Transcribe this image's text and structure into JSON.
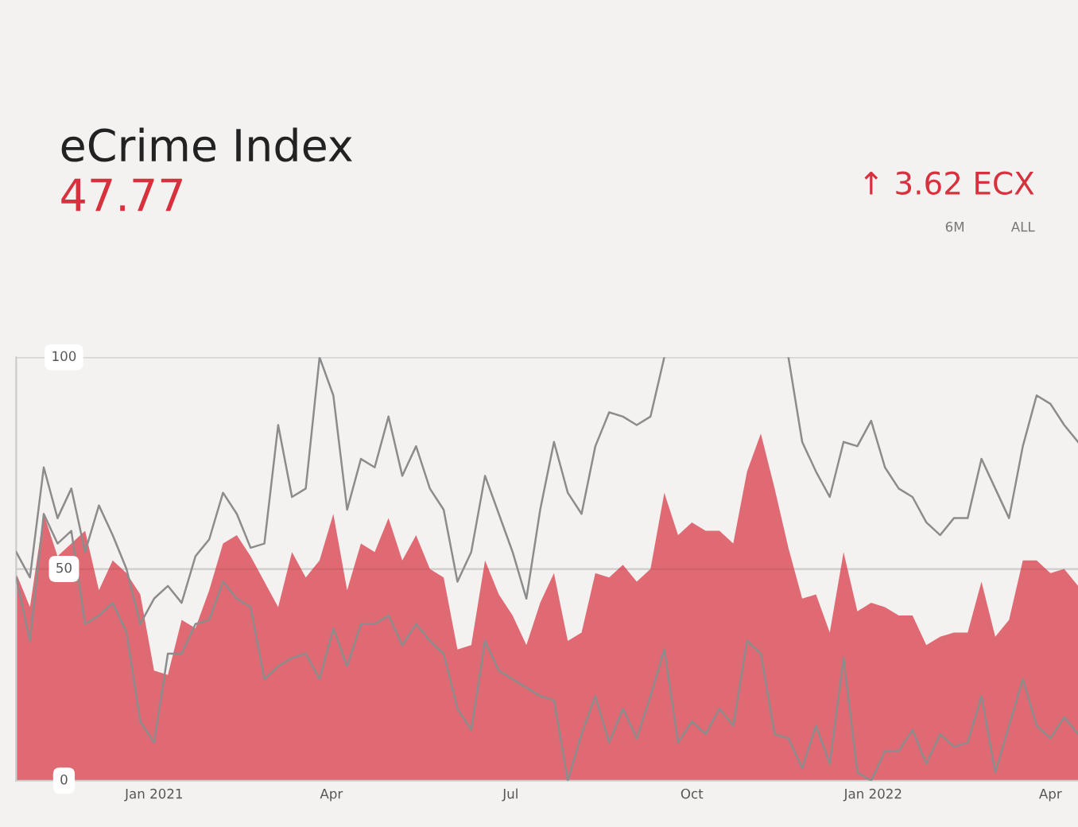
{
  "chart_data": {
    "type": "area",
    "title": "eCrime Index",
    "subtitle": "47.77",
    "annotations": [
      "↑ 3.62 ECX",
      "6M",
      "ALL"
    ],
    "x": [
      "2020-10-23",
      "2020-10-30",
      "2020-11-06",
      "2020-11-13",
      "2020-11-20",
      "2020-11-27",
      "2020-12-04",
      "2020-12-11",
      "2020-12-18",
      "2020-12-25",
      "2021-01-01",
      "2021-01-08",
      "2021-01-15",
      "2021-01-22",
      "2021-01-29",
      "2021-02-05",
      "2021-02-12",
      "2021-02-19",
      "2021-02-26",
      "2021-03-05",
      "2021-03-12",
      "2021-03-19",
      "2021-03-26",
      "2021-04-02",
      "2021-04-09",
      "2021-04-16",
      "2021-04-23",
      "2021-04-30",
      "2021-05-07",
      "2021-05-14",
      "2021-05-21",
      "2021-05-28",
      "2021-06-04",
      "2021-06-11",
      "2021-06-18",
      "2021-06-25",
      "2021-07-02",
      "2021-07-09",
      "2021-07-16",
      "2021-07-23",
      "2021-07-30",
      "2021-08-06",
      "2021-08-13",
      "2021-08-20",
      "2021-08-27",
      "2021-09-03",
      "2021-09-10",
      "2021-09-17",
      "2021-09-24",
      "2021-10-01",
      "2021-10-08",
      "2021-10-15",
      "2021-10-22",
      "2021-10-29",
      "2021-11-05",
      "2021-11-12",
      "2021-11-19",
      "2021-11-26",
      "2021-12-03",
      "2021-12-10",
      "2021-12-17",
      "2021-12-24",
      "2021-12-31",
      "2022-01-07",
      "2022-01-14",
      "2022-01-21",
      "2022-01-28",
      "2022-02-04",
      "2022-02-11",
      "2022-02-18",
      "2022-02-25",
      "2022-03-04",
      "2022-03-11",
      "2022-03-18",
      "2022-03-25",
      "2022-04-01",
      "2022-04-08",
      "2022-04-15"
    ],
    "series": [
      {
        "color": "#d6313d",
        "values": [
          49,
          41,
          63,
          53,
          56,
          59,
          45,
          52,
          49,
          44,
          26,
          25,
          38,
          36,
          45,
          56,
          58,
          53,
          47,
          41,
          54,
          48,
          52,
          63,
          45,
          56,
          54,
          62,
          52,
          58,
          50,
          48,
          31,
          32,
          52,
          44,
          39,
          32,
          42,
          49,
          33,
          35,
          49,
          48,
          51,
          47,
          50,
          68,
          58,
          61,
          59,
          59,
          56,
          73,
          82,
          69,
          55,
          43,
          44,
          35,
          54,
          40,
          42,
          41,
          39,
          39,
          32,
          34,
          35,
          35,
          47,
          34,
          38,
          52,
          52,
          49,
          50,
          46
        ]
      },
      {
        "type": "line",
        "color": "#8c8c8c",
        "values": [
          54,
          48,
          74,
          62,
          69,
          54,
          65,
          58,
          50,
          37,
          43,
          46,
          42,
          53,
          57,
          68,
          63,
          55,
          56,
          84,
          67,
          69,
          100,
          91,
          64,
          76,
          74,
          86,
          72,
          79,
          69,
          64,
          47,
          54,
          72,
          63,
          54,
          43,
          64,
          80,
          68,
          63,
          79,
          87,
          86,
          84,
          86,
          100,
          null,
          null,
          null,
          null,
          null,
          null,
          null,
          null,
          100,
          80,
          73,
          67,
          80,
          79,
          85,
          74,
          69,
          67,
          61,
          58,
          62,
          62,
          76,
          69,
          62,
          79,
          91,
          89,
          84,
          80
        ]
      },
      {
        "type": "line",
        "color": "#8c8c8c",
        "values": [
          48,
          33,
          63,
          56,
          59,
          37,
          39,
          42,
          35,
          14,
          9,
          30,
          30,
          37,
          38,
          47,
          43,
          41,
          24,
          27,
          29,
          30,
          24,
          36,
          27,
          37,
          37,
          39,
          32,
          37,
          33,
          30,
          17,
          12,
          33,
          26,
          24,
          22,
          20,
          19,
          0,
          11,
          20,
          9,
          17,
          10,
          20,
          31,
          9,
          14,
          11,
          17,
          13,
          33,
          30,
          11,
          10,
          3,
          13,
          4,
          29,
          2,
          0,
          7,
          7,
          12,
          4,
          11,
          8,
          9,
          20,
          2,
          13,
          24,
          13,
          10,
          15,
          11
        ]
      }
    ],
    "xlim": [
      "2020-10-23",
      "2022-04-15"
    ],
    "xticks": [
      {
        "value": "2021-01-01",
        "label": "Jan 2021"
      },
      {
        "value": "2021-04-01",
        "label": "Apr"
      },
      {
        "value": "2021-07-01",
        "label": "Jul"
      },
      {
        "value": "2021-10-01",
        "label": "Oct"
      },
      {
        "value": "2022-01-01",
        "label": "Jan 2022"
      },
      {
        "value": "2022-04-01",
        "label": "Apr"
      }
    ],
    "ylim": [
      0,
      100
    ],
    "yticks": [
      0,
      50,
      100
    ],
    "grid": "y",
    "legend": false
  }
}
